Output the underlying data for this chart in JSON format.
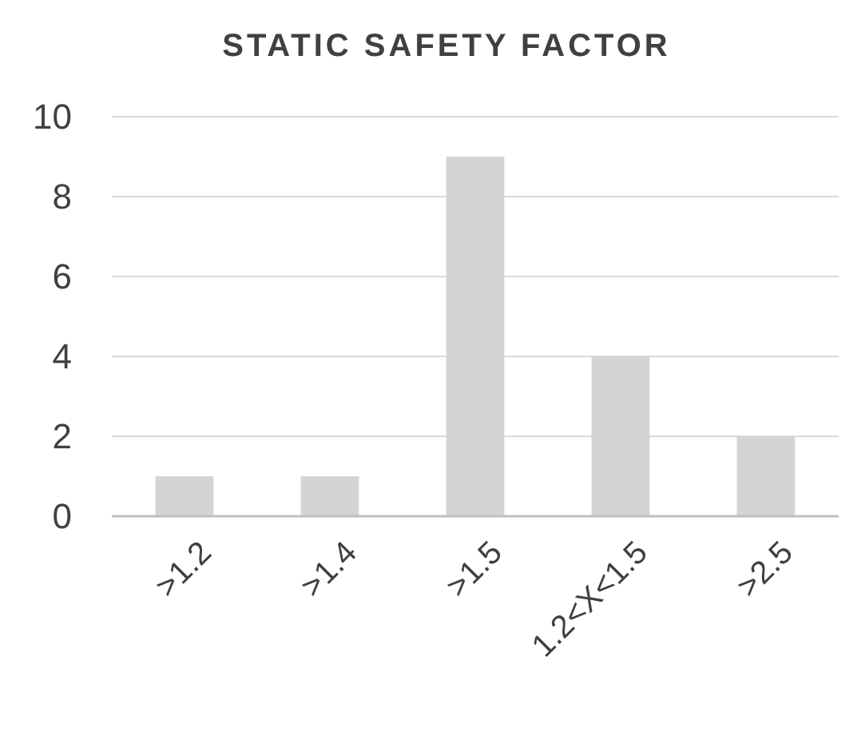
{
  "chart_data": {
    "type": "bar",
    "title": "STATIC SAFETY FACTOR",
    "categories": [
      ">1.2",
      ">1.4",
      ">1.5",
      "1.2<X<1.5",
      ">2.5"
    ],
    "values": [
      1,
      1,
      9,
      4,
      2
    ],
    "color": "#d4d4d4",
    "ylim": [
      0,
      10
    ],
    "yticks": [
      0,
      2,
      4,
      6,
      8,
      10
    ],
    "grid": "y"
  }
}
